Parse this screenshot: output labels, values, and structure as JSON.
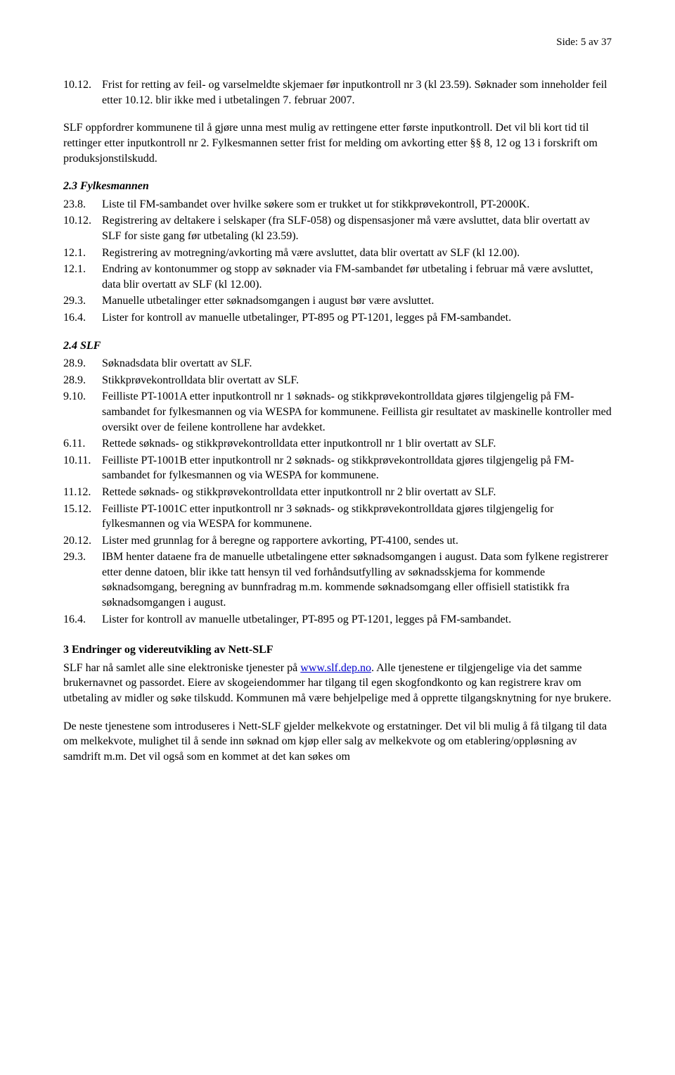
{
  "page_header": "Side:   5 av 37",
  "intro": {
    "num": "10.12.",
    "text": "Frist for retting av feil- og varselmeldte skjemaer før inputkontroll nr 3 (kl 23.59). Søknader som inneholder feil etter 10.12. blir ikke med i utbetalingen 7. februar 2007."
  },
  "para1": "SLF oppfordrer kommunene til å gjøre unna mest mulig av rettingene etter første inputkontroll. Det vil bli kort tid til rettinger etter inputkontroll nr 2. Fylkesmannen setter frist for melding om avkorting etter §§ 8, 12 og 13 i forskrift om produksjonstilskudd.",
  "sec23": {
    "heading": "2.3     Fylkesmannen",
    "items": [
      {
        "num": "23.8.",
        "text": "Liste til FM-sambandet over hvilke søkere som er trukket ut for stikkprøvekontroll, PT-2000K."
      },
      {
        "num": "10.12.",
        "text": "Registrering av deltakere i selskaper (fra SLF-058) og dispensasjoner må være avsluttet, data blir overtatt av SLF for siste gang før utbetaling (kl 23.59)."
      },
      {
        "num": "12.1.",
        "text": "Registrering av motregning/avkorting må være avsluttet, data blir overtatt av SLF (kl 12.00)."
      },
      {
        "num": "12.1.",
        "text": "Endring av kontonummer og stopp av søknader via FM-sambandet før utbetaling i februar må være avsluttet, data blir overtatt av SLF (kl 12.00)."
      },
      {
        "num": "29.3.",
        "text": "Manuelle utbetalinger etter søknadsomgangen i august bør være avsluttet."
      },
      {
        "num": "16.4.",
        "text": "Lister for kontroll av manuelle utbetalinger, PT-895 og PT-1201, legges på FM-sambandet."
      }
    ]
  },
  "sec24": {
    "heading": "2.4     SLF",
    "items": [
      {
        "num": "28.9.",
        "text": "Søknadsdata blir overtatt av SLF."
      },
      {
        "num": "28.9.",
        "text": "Stikkprøvekontrolldata blir overtatt av SLF."
      },
      {
        "num": "9.10.",
        "text": "Feilliste PT-1001A etter inputkontroll nr 1 søknads- og stikkprøvekontrolldata gjøres tilgjengelig på FM-sambandet for fylkesmannen og via WESPA for kommunene. Feillista gir resultatet av maskinelle kontroller med oversikt over de feilene kontrollene har avdekket."
      },
      {
        "num": "6.11.",
        "text": "Rettede søknads- og stikkprøvekontrolldata etter inputkontroll nr 1 blir overtatt av SLF."
      },
      {
        "num": "10.11.",
        "text": "Feilliste PT-1001B etter inputkontroll nr 2 søknads- og stikkprøvekontrolldata gjøres tilgjengelig på FM-sambandet for fylkesmannen og via WESPA for kommunene."
      },
      {
        "num": "11.12.",
        "text": "Rettede søknads- og stikkprøvekontrolldata etter inputkontroll nr 2 blir overtatt av SLF."
      },
      {
        "num": "15.12.",
        "text": "Feilliste PT-1001C etter inputkontroll nr 3 søknads- og stikkprøvekontrolldata gjøres tilgjengelig for fylkesmannen og via WESPA for kommunene."
      },
      {
        "num": "20.12.",
        "text": "Lister med grunnlag for å beregne og rapportere avkorting, PT-4100, sendes ut."
      },
      {
        "num": "29.3.",
        "text": "IBM henter dataene fra de manuelle utbetalingene etter søknadsomgangen i august. Data som fylkene registrerer etter denne datoen, blir ikke tatt hensyn til ved forhåndsutfylling av søknadsskjema for kommende søknadsomgang, beregning av bunnfradrag m.m. kommende søknadsomgang eller offisiell statistikk fra søknadsomgangen i august."
      },
      {
        "num": "16.4.",
        "text": "Lister for kontroll av manuelle utbetalinger, PT-895 og PT-1201, legges på FM-sambandet."
      }
    ]
  },
  "sec3": {
    "heading": "3      Endringer og videreutvikling av Nett-SLF",
    "p1a": "SLF har nå samlet alle sine elektroniske tjenester på ",
    "link_text": "www.slf.dep.no",
    "p1b": ". Alle tjenestene er tilgjengelige via det samme brukernavnet og passordet. Eiere av skogeiendommer har tilgang til egen skogfondkonto og kan registrere krav om utbetaling av midler og søke tilskudd. Kommunen må være behjelpelige med å opprette tilgangsknytning for nye brukere.",
    "p2": "De neste tjenestene som introduseres i Nett-SLF gjelder melkekvote og erstatninger. Det vil bli mulig å få tilgang til data om melkekvote, mulighet til å sende inn søknad om kjøp eller salg av melkekvote og om etablering/oppløsning av samdrift m.m. Det vil også som en kommet at det kan søkes om"
  }
}
